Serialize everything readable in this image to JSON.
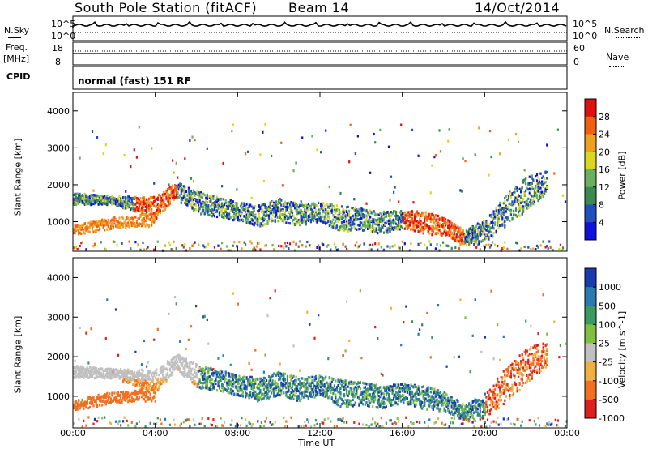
{
  "header": {
    "station": "South Pole Station (fitACF)",
    "beam": "Beam 14",
    "date": "14/Oct/2014"
  },
  "small_panels": {
    "nsky_label": "N.Sky",
    "nsky_top": "10^5",
    "nsky_bottom": "10^0",
    "nsearch_label": "N.Search",
    "nsearch_top": "10^5",
    "nsearch_bottom": "10^0",
    "freq_label": "Freq.",
    "freq_unit": "[MHz]",
    "freq_top": "18",
    "freq_bottom": "8",
    "nave_label": "Nave",
    "nave_top": "60",
    "nave_bottom": "0",
    "cpid_label": "CPID",
    "cpid_text": "normal (fast) 151 RF"
  },
  "chart_data": [
    {
      "type": "heatmap",
      "panel": "power",
      "ylabel": "Slant Range [km]",
      "y_ticks": [
        "1000",
        "2000",
        "3000",
        "4000"
      ],
      "ylim": [
        200,
        4500
      ],
      "xlim": [
        "00:00",
        "24:00"
      ],
      "colorbar_label": "Power [dB]",
      "colorbar_ticks": [
        "4",
        "8",
        "12",
        "16",
        "20",
        "24",
        "28"
      ],
      "colorbar_colors": [
        "#1010e0",
        "#2050c0",
        "#3a8a50",
        "#6ab060",
        "#d8d820",
        "#f0a020",
        "#f06010",
        "#e01010"
      ]
    },
    {
      "type": "heatmap",
      "panel": "velocity",
      "ylabel": "Slant Range [km]",
      "y_ticks": [
        "1000",
        "2000",
        "3000",
        "4000"
      ],
      "ylim": [
        200,
        4500
      ],
      "xlim": [
        "00:00",
        "24:00"
      ],
      "colorbar_label": "Velocity [m s^-1]",
      "colorbar_ticks": [
        "1000",
        "500",
        "100",
        "25",
        "-25",
        "-100",
        "-500",
        "-1000"
      ],
      "colorbar_colors": [
        "#1a3ab0",
        "#2a7ab0",
        "#3a9a60",
        "#80c040",
        "#c0c0c0",
        "#f0b040",
        "#f07020",
        "#e02020"
      ]
    }
  ],
  "x_axis": {
    "label": "Time UT",
    "ticks": [
      "00:00",
      "04:00",
      "08:00",
      "12:00",
      "16:00",
      "20:00",
      "00:00"
    ]
  }
}
